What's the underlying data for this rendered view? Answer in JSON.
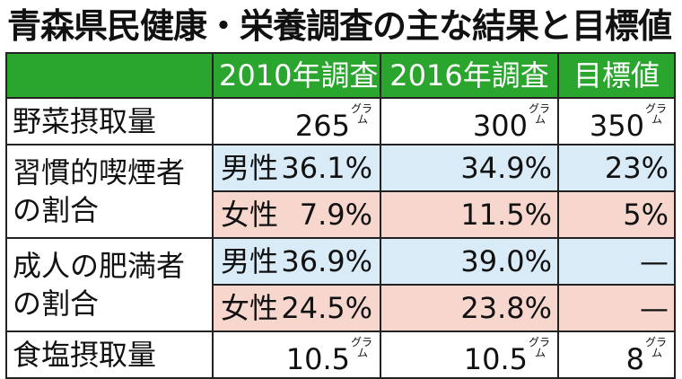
{
  "title": "青森県民健康・栄養調査の主な結果と目標値",
  "header": {
    "col1": "2010年調査",
    "col2": "2016年調査",
    "col3": "目標値"
  },
  "unit": {
    "top": "グラ",
    "bottom": "ム"
  },
  "rows": {
    "vegetable": {
      "label": "野菜摂取量",
      "v2010": "265",
      "v2016": "300",
      "target": "350"
    },
    "smoker": {
      "label": "習慣的喫煙者の割合",
      "male": {
        "sex": "男性",
        "v2010": "36.1%",
        "v2016": "34.9%",
        "target": "23%"
      },
      "female": {
        "sex": "女性",
        "v2010": "7.9%",
        "v2016": "11.5%",
        "target": "5%"
      }
    },
    "obese": {
      "label": "成人の肥満者の割合",
      "male": {
        "sex": "男性",
        "v2010": "36.9%",
        "v2016": "39.0%",
        "target": "—"
      },
      "female": {
        "sex": "女性",
        "v2010": "24.5%",
        "v2016": "23.8%",
        "target": "—"
      }
    },
    "salt": {
      "label": "食塩摂取量",
      "v2010": "10.5",
      "v2016": "10.5",
      "target": "8"
    }
  },
  "colors": {
    "header_green": "#2aa52e",
    "male_blue": "#d8ebf7",
    "female_pink": "#f6d6cd"
  }
}
